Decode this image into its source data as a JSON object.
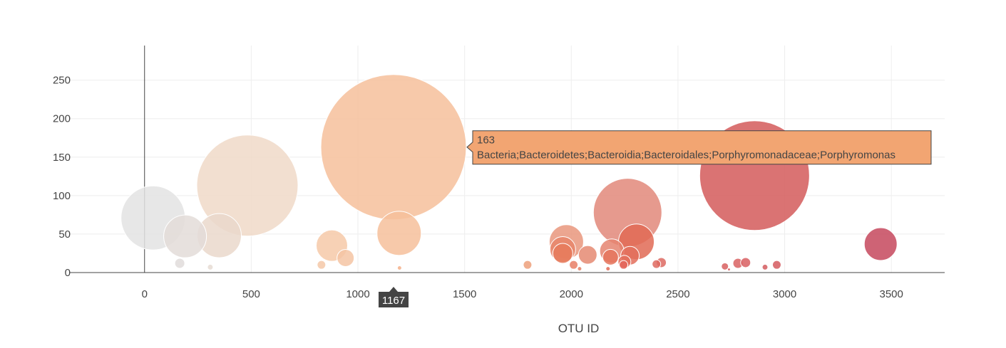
{
  "chart_data": {
    "type": "scatter",
    "subtype": "bubble",
    "title": "",
    "xlabel": "OTU ID",
    "ylabel": "",
    "xlim": [
      -350,
      3750
    ],
    "ylim": [
      0,
      295
    ],
    "x_ticks": [
      0,
      500,
      1000,
      1500,
      2000,
      2500,
      3000,
      3500
    ],
    "y_ticks": [
      0,
      50,
      100,
      150,
      200,
      250
    ],
    "grid": true,
    "legend": "none",
    "color_scale": [
      "#e6e6e6",
      "#f0d9c8",
      "#f6c09b",
      "#f2a572",
      "#e88a6e",
      "#e2654c",
      "#d45a5a",
      "#c5485d"
    ],
    "points": [
      {
        "x": 40,
        "y": 71,
        "r": 45,
        "color": "#e3e3e3"
      },
      {
        "x": 190,
        "y": 47,
        "r": 30,
        "color": "#e3dcd8"
      },
      {
        "x": 350,
        "y": 48,
        "r": 31,
        "color": "#ead8cb"
      },
      {
        "x": 482,
        "y": 113,
        "r": 71,
        "color": "#f0d9c8"
      },
      {
        "x": 165,
        "y": 12,
        "r": 7,
        "color": "#e0dcda"
      },
      {
        "x": 308,
        "y": 7,
        "r": 4,
        "color": "#e6dcd4"
      },
      {
        "x": 829,
        "y": 10,
        "r": 6,
        "color": "#f5c8a8"
      },
      {
        "x": 878,
        "y": 35,
        "r": 22,
        "color": "#f6c9a8"
      },
      {
        "x": 942,
        "y": 19,
        "r": 12,
        "color": "#f4c4a3"
      },
      {
        "x": 1167,
        "y": 163,
        "r": 102,
        "color": "#f6c09b"
      },
      {
        "x": 1193,
        "y": 51,
        "r": 31,
        "color": "#f6c09b"
      },
      {
        "x": 1195,
        "y": 6,
        "r": 3,
        "color": "#f4b08a"
      },
      {
        "x": 1795,
        "y": 10,
        "r": 6,
        "color": "#eda07b"
      },
      {
        "x": 1977,
        "y": 40,
        "r": 24,
        "color": "#e9967c"
      },
      {
        "x": 1960,
        "y": 30,
        "r": 18,
        "color": "#e8856a"
      },
      {
        "x": 1960,
        "y": 25,
        "r": 14,
        "color": "#e67a5c"
      },
      {
        "x": 2011,
        "y": 10,
        "r": 6,
        "color": "#e77f66"
      },
      {
        "x": 2077,
        "y": 23,
        "r": 13,
        "color": "#e58a72"
      },
      {
        "x": 2039,
        "y": 5,
        "r": 3,
        "color": "#e48066"
      },
      {
        "x": 2190,
        "y": 28,
        "r": 17,
        "color": "#e58470"
      },
      {
        "x": 2184,
        "y": 20,
        "r": 11,
        "color": "#e5755d"
      },
      {
        "x": 2172,
        "y": 5,
        "r": 3,
        "color": "#e06b57"
      },
      {
        "x": 2264,
        "y": 78,
        "r": 48,
        "color": "#e2887a"
      },
      {
        "x": 2305,
        "y": 40,
        "r": 25,
        "color": "#e06a55"
      },
      {
        "x": 2275,
        "y": 22,
        "r": 13,
        "color": "#e36f5c"
      },
      {
        "x": 2249,
        "y": 14,
        "r": 9,
        "color": "#e36d5a"
      },
      {
        "x": 2245,
        "y": 10,
        "r": 6,
        "color": "#e3655a"
      },
      {
        "x": 2399,
        "y": 11,
        "r": 6,
        "color": "#de6a60"
      },
      {
        "x": 2422,
        "y": 13,
        "r": 7,
        "color": "#dd6a62"
      },
      {
        "x": 2720,
        "y": 8,
        "r": 5,
        "color": "#d86060"
      },
      {
        "x": 2781,
        "y": 12,
        "r": 7,
        "color": "#d96363"
      },
      {
        "x": 2817,
        "y": 13,
        "r": 7,
        "color": "#d85f62"
      },
      {
        "x": 2739,
        "y": 4,
        "r": 2,
        "color": "#d45a5a"
      },
      {
        "x": 2859,
        "y": 126,
        "r": 77,
        "color": "#d45a5a"
      },
      {
        "x": 2908,
        "y": 7,
        "r": 4,
        "color": "#d45c5f"
      },
      {
        "x": 2963,
        "y": 10,
        "r": 6,
        "color": "#d55b5f"
      },
      {
        "x": 3450,
        "y": 37,
        "r": 23,
        "color": "#c5485d"
      }
    ],
    "hover": {
      "x": 1167,
      "y": 163,
      "value": "163",
      "label": "Bacteria;Bacteroidetes;Bacteroidia;Bacteroidales;Porphyromonadaceae;Porphyromonas",
      "bg_color": "#f2a572",
      "border_color": "#444444"
    },
    "spike": {
      "x": 1167,
      "label": "1167",
      "bg_color": "#444444"
    }
  }
}
